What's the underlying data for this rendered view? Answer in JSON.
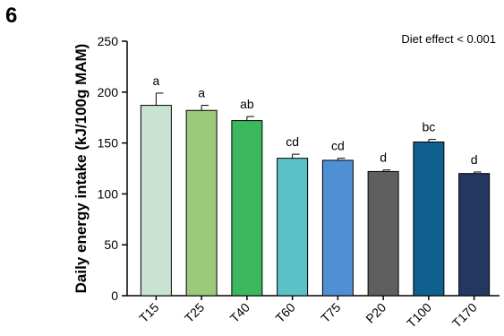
{
  "panel_label": "6",
  "chart_data": {
    "type": "bar",
    "categories": [
      "T15",
      "T25",
      "T40",
      "T60",
      "T75",
      "P20",
      "T100",
      "T170"
    ],
    "values": [
      187,
      182,
      172,
      135,
      133,
      122,
      151,
      120
    ],
    "errors": [
      12,
      5,
      4,
      4,
      2,
      1.5,
      2.5,
      1.5
    ],
    "significance_letters": [
      "a",
      "a",
      "ab",
      "cd",
      "cd",
      "d",
      "bc",
      "d"
    ],
    "colors": [
      "#c9e3d3",
      "#9cc97b",
      "#3bb85d",
      "#5ac2c6",
      "#4f8fd4",
      "#5f5f5f",
      "#0f5f8f",
      "#243762"
    ],
    "ylabel": "Daily energy intake (kJ/100g MAM)",
    "xlabel": "",
    "ylim": [
      0,
      250
    ],
    "yticks": [
      0,
      50,
      100,
      150,
      200,
      250
    ],
    "annotation": "Diet effect < 0.001",
    "grid": false,
    "legend": "none"
  }
}
